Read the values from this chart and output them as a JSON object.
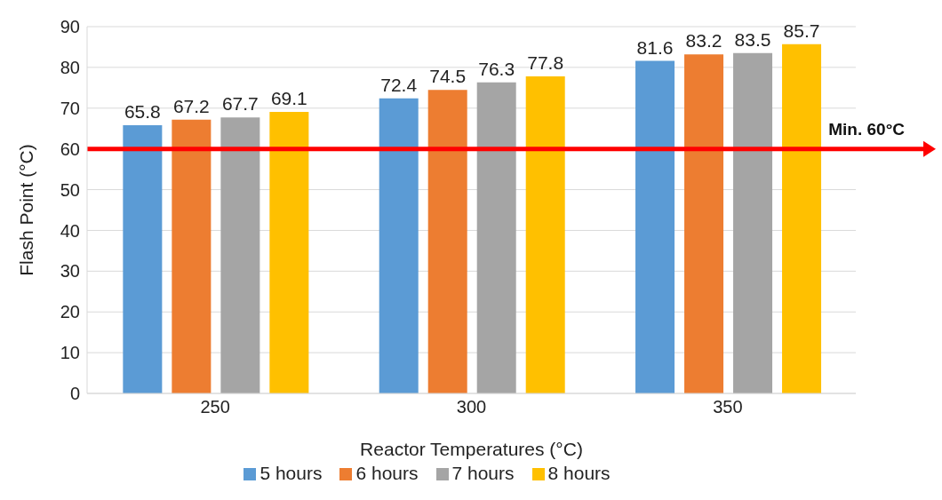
{
  "chart_data": {
    "type": "bar",
    "xlabel": "Reactor Temperatures (°C)",
    "ylabel": "Flash Point (°C)",
    "categories": [
      "250",
      "300",
      "350"
    ],
    "series": [
      {
        "name": "5 hours",
        "color": "#5b9bd5",
        "values": [
          65.8,
          72.4,
          81.6
        ]
      },
      {
        "name": "6 hours",
        "color": "#ed7d31",
        "values": [
          67.2,
          74.5,
          83.2
        ]
      },
      {
        "name": "7 hours",
        "color": "#a5a5a5",
        "values": [
          67.7,
          76.3,
          83.5
        ]
      },
      {
        "name": "8 hours",
        "color": "#ffc000",
        "values": [
          69.1,
          77.8,
          85.7
        ]
      }
    ],
    "ylim": [
      0,
      90
    ],
    "yticks": [
      0,
      10,
      20,
      30,
      40,
      50,
      60,
      70,
      80,
      90
    ],
    "grid": "y",
    "legend": "bottom",
    "data_labels": true,
    "ref_lines": [
      {
        "axis": "y",
        "value": 60,
        "label": "Min. 60°C",
        "color": "#ff0000"
      }
    ]
  }
}
